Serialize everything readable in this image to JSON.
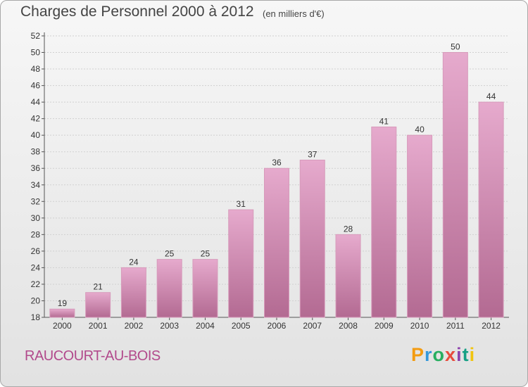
{
  "header": {
    "title": "Charges de Personnel 2000 à 2012",
    "unit": "(en milliers d'€)"
  },
  "footer": {
    "commune": "RAUCOURT-AU-BOIS",
    "logo_letters": [
      "P",
      "r",
      "o",
      "x",
      "i",
      "t",
      "i"
    ],
    "logo_colors": [
      "#f39c12",
      "#3498db",
      "#27ae60",
      "#e74c3c",
      "#8e44ad",
      "#16a085",
      "#f1c40f"
    ]
  },
  "colors": {
    "bar": "#c9749f",
    "bar_light": "#e3a8c8",
    "accent": "#b24a8c"
  },
  "chart_data": {
    "type": "bar",
    "title": "Charges de Personnel 2000 à 2012",
    "subtitle": "(en milliers d'€)",
    "xlabel": "",
    "ylabel": "",
    "categories": [
      "2000",
      "2001",
      "2002",
      "2003",
      "2004",
      "2005",
      "2006",
      "2007",
      "2008",
      "2009",
      "2010",
      "2011",
      "2012"
    ],
    "values": [
      19,
      21,
      24,
      25,
      25,
      31,
      36,
      37,
      28,
      41,
      40,
      50,
      44
    ],
    "ylim": [
      18,
      52
    ],
    "yticks": [
      18,
      20,
      22,
      24,
      26,
      28,
      30,
      32,
      34,
      36,
      38,
      40,
      42,
      44,
      46,
      48,
      50,
      52
    ],
    "grid": "horizontal",
    "legend": "none"
  }
}
